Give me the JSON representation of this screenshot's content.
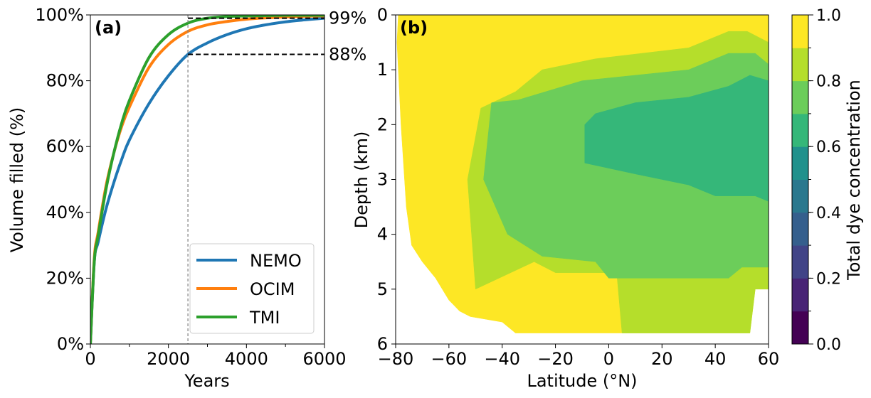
{
  "chart_data": [
    {
      "type": "line",
      "panel_label": "(a)",
      "xlabel": "Years",
      "ylabel": "Volume filled (%)",
      "xlim": [
        0,
        6000
      ],
      "ylim": [
        0,
        100
      ],
      "xticks": [
        0,
        2000,
        4000,
        6000
      ],
      "xtick_labels": [
        "0",
        "2000",
        "4000",
        "6000"
      ],
      "yticks": [
        0,
        20,
        40,
        60,
        80,
        100
      ],
      "ytick_labels": [
        "0%",
        "20%",
        "40%",
        "60%",
        "80%",
        "100%"
      ],
      "grid": false,
      "legend_position": "lower right",
      "series": [
        {
          "name": "NEMO",
          "color": "#1f77b4",
          "x": [
            0,
            100,
            200,
            400,
            600,
            800,
            1000,
            1500,
            2000,
            2500,
            3000,
            3500,
            4000,
            4500,
            5000,
            5500,
            6000
          ],
          "y": [
            0,
            25,
            31,
            41,
            49,
            56,
            62,
            73,
            81.5,
            88,
            91.5,
            94,
            95.8,
            97,
            97.9,
            98.5,
            99
          ]
        },
        {
          "name": "OCIM",
          "color": "#ff7f0e",
          "x": [
            0,
            100,
            200,
            400,
            600,
            800,
            1000,
            1500,
            2000,
            2500,
            3000,
            3500,
            4000,
            4500,
            5000,
            5500,
            6000
          ],
          "y": [
            0,
            26,
            34,
            48,
            58,
            66,
            72,
            84,
            91,
            95,
            97,
            98,
            98.7,
            99.1,
            99.4,
            99.6,
            99.7
          ]
        },
        {
          "name": "TMI",
          "color": "#2ca02c",
          "x": [
            0,
            100,
            200,
            400,
            600,
            800,
            1000,
            1500,
            2000,
            2500,
            3000,
            3500,
            4000,
            4500,
            5000,
            5500,
            6000
          ],
          "y": [
            0,
            25,
            33,
            47,
            58,
            67,
            74,
            87,
            94,
            97.5,
            99,
            99.5,
            99.7,
            99.8,
            99.9,
            99.9,
            99.9
          ]
        }
      ],
      "annotations": {
        "vline_x": 2500,
        "labels": [
          {
            "text": "99%",
            "y": 99
          },
          {
            "text": "88%",
            "y": 88
          }
        ]
      }
    },
    {
      "type": "heatmap",
      "panel_label": "(b)",
      "xlabel": "Latitude (°N)",
      "ylabel": "Depth (km)",
      "xlim": [
        -80,
        60
      ],
      "ylim": [
        6,
        0
      ],
      "xticks": [
        -80,
        -60,
        -40,
        -20,
        0,
        20,
        40,
        60
      ],
      "xtick_labels": [
        "−80",
        "−60",
        "−40",
        "−20",
        "0",
        "20",
        "40",
        "60"
      ],
      "yticks": [
        0,
        1,
        2,
        3,
        4,
        5,
        6
      ],
      "ytick_labels": [
        "0",
        "1",
        "2",
        "3",
        "4",
        "5",
        "6"
      ],
      "colorbar": {
        "label": "Total dye concentration",
        "range": [
          0,
          1
        ],
        "ticks": [
          0,
          0.2,
          0.4,
          0.6,
          0.8,
          1.0
        ],
        "tick_labels": [
          "0.0",
          "0.2",
          "0.4",
          "0.6",
          "0.8",
          "1.0"
        ],
        "levels": [
          {
            "from": 0.0,
            "to": 0.1,
            "color": "#440154"
          },
          {
            "from": 0.1,
            "to": 0.2,
            "color": "#482475"
          },
          {
            "from": 0.2,
            "to": 0.3,
            "color": "#414487"
          },
          {
            "from": 0.3,
            "to": 0.4,
            "color": "#355f8d"
          },
          {
            "from": 0.4,
            "to": 0.5,
            "color": "#2a788e"
          },
          {
            "from": 0.5,
            "to": 0.6,
            "color": "#21918c"
          },
          {
            "from": 0.6,
            "to": 0.7,
            "color": "#35b779"
          },
          {
            "from": 0.7,
            "to": 0.8,
            "color": "#6ccd5a"
          },
          {
            "from": 0.8,
            "to": 0.9,
            "color": "#b5de2b"
          },
          {
            "from": 0.9,
            "to": 1.0,
            "color": "#fde725"
          }
        ]
      },
      "regions": [
        {
          "value_range": [
            0.9,
            1.0
          ],
          "color": "#fde725",
          "outline": [
            [
              -79,
              0
            ],
            [
              60,
              0
            ],
            [
              60,
              5.0
            ],
            [
              55,
              5.0
            ],
            [
              53,
              5.8
            ],
            [
              5,
              5.8
            ],
            [
              -20,
              5.8
            ],
            [
              -35,
              5.8
            ],
            [
              -40,
              5.6
            ],
            [
              -52,
              5.5
            ],
            [
              -56,
              5.4
            ],
            [
              -60,
              5.2
            ],
            [
              -65,
              4.8
            ],
            [
              -70,
              4.5
            ],
            [
              -74,
              4.2
            ],
            [
              -76,
              3.5
            ],
            [
              -78,
              2.0
            ],
            [
              -79.5,
              0.5
            ]
          ]
        },
        {
          "value_range": [
            0.8,
            0.9
          ],
          "color": "#b5de2b",
          "outline": [
            [
              -50,
              5.0
            ],
            [
              -53,
              3.0
            ],
            [
              -48,
              1.7
            ],
            [
              -35,
              1.4
            ],
            [
              -25,
              1.0
            ],
            [
              -5,
              0.8
            ],
            [
              30,
              0.6
            ],
            [
              45,
              0.3
            ],
            [
              52,
              0.3
            ],
            [
              60,
              0.5
            ],
            [
              60,
              5.0
            ],
            [
              55,
              5.0
            ],
            [
              53,
              5.8
            ],
            [
              5,
              5.8
            ],
            [
              3,
              4.7
            ],
            [
              -20,
              4.7
            ],
            [
              -28,
              4.5
            ]
          ]
        },
        {
          "value_range": [
            0.7,
            0.8
          ],
          "color": "#6ccd5a",
          "outline": [
            [
              -47,
              3.0
            ],
            [
              -44,
              1.6
            ],
            [
              -34,
              1.55
            ],
            [
              -10,
              1.2
            ],
            [
              30,
              1.0
            ],
            [
              45,
              0.7
            ],
            [
              55,
              0.7
            ],
            [
              60,
              0.9
            ],
            [
              60,
              4.6
            ],
            [
              50,
              4.6
            ],
            [
              45,
              4.8
            ],
            [
              0,
              4.8
            ],
            [
              -5,
              4.5
            ],
            [
              -25,
              4.4
            ],
            [
              -38,
              4.0
            ]
          ]
        },
        {
          "value_range": [
            0.6,
            0.7
          ],
          "color": "#35b779",
          "outline": [
            [
              -9,
              2.7
            ],
            [
              -9,
              2.0
            ],
            [
              -5,
              1.8
            ],
            [
              10,
              1.6
            ],
            [
              30,
              1.5
            ],
            [
              45,
              1.3
            ],
            [
              53,
              1.1
            ],
            [
              60,
              1.2
            ],
            [
              60,
              3.4
            ],
            [
              55,
              3.3
            ],
            [
              40,
              3.3
            ],
            [
              30,
              3.1
            ],
            [
              10,
              2.9
            ]
          ]
        }
      ]
    }
  ]
}
